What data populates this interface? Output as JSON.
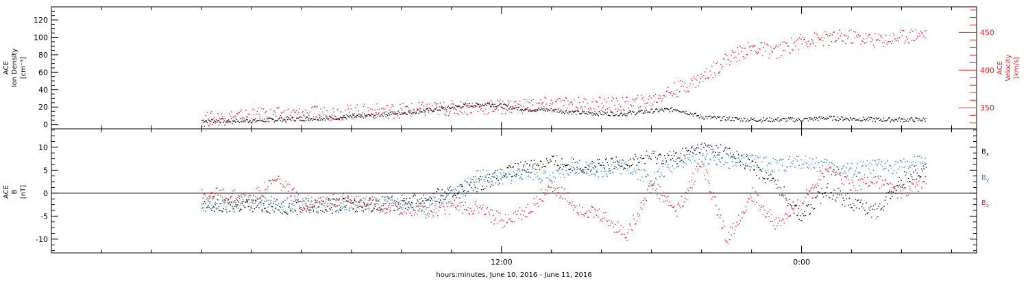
{
  "chart_data": [
    {
      "type": "scatter",
      "panel": "top",
      "title": "",
      "ylabel_lines": [
        "ACE",
        "Ion Density"
      ],
      "ylabel_unit": "[cm⁻³]",
      "ylim": [
        -5,
        135
      ],
      "yticks": [
        0,
        20,
        40,
        60,
        80,
        100,
        120
      ],
      "right_axis": {
        "ylabel_lines": [
          "ACE",
          "Velocity"
        ],
        "ylabel_unit": "[km/s]",
        "ylim": [
          322,
          484
        ],
        "yticks": [
          350,
          400,
          450
        ],
        "color": "#ee1c1c"
      },
      "series": [
        {
          "name": "",
          "color": "#000000",
          "axis": "left",
          "x": [
            0,
            2,
            4,
            6,
            8,
            9.5,
            10.5,
            11.5,
            12,
            13,
            14,
            15,
            16,
            17,
            18,
            19,
            20,
            21,
            22,
            23,
            24,
            25,
            26,
            27,
            28,
            29
          ],
          "y": [
            5,
            5,
            7,
            9,
            14,
            18,
            22,
            24,
            22,
            18,
            17,
            14,
            13,
            13,
            16,
            18,
            9,
            7,
            6,
            6,
            6,
            8,
            7,
            6,
            6,
            6
          ]
        },
        {
          "name": "",
          "color": "#ee1c1c",
          "axis": "right",
          "x": [
            0,
            2,
            4,
            6,
            8,
            10,
            12,
            14,
            16,
            17,
            18,
            18.5,
            19,
            20,
            21,
            22,
            23,
            24,
            25,
            26,
            27,
            28,
            29
          ],
          "y": [
            335,
            340,
            342,
            345,
            347,
            350,
            352,
            355,
            355,
            355,
            360,
            370,
            375,
            390,
            415,
            430,
            425,
            440,
            442,
            445,
            440,
            445,
            450
          ]
        }
      ]
    },
    {
      "type": "scatter",
      "panel": "bottom",
      "title": "",
      "ylabel_lines": [
        "ACE",
        "B"
      ],
      "ylabel_unit": "[nT]",
      "ylim": [
        -13,
        14
      ],
      "yticks": [
        -10,
        -5,
        0,
        5,
        10
      ],
      "zero_line": true,
      "legend_position": "right",
      "series": [
        {
          "name": "Bx",
          "label_main": "B",
          "label_sub": "x",
          "color": "#000000",
          "x": [
            0,
            2,
            4,
            6,
            8,
            9,
            10,
            11,
            12,
            13,
            14,
            15,
            16,
            17,
            18,
            19,
            20,
            21,
            22,
            23,
            24,
            25,
            26,
            27,
            28,
            29
          ],
          "y": [
            -3,
            -2.5,
            -3,
            -2.5,
            -2,
            -1,
            0,
            2,
            4,
            6,
            7,
            6,
            6,
            7,
            8,
            8,
            10,
            9,
            6,
            2,
            -5,
            1,
            -2,
            -4,
            3,
            6
          ]
        },
        {
          "name": "By",
          "label_main": "B",
          "label_sub": "y",
          "color": "#1f7fd6",
          "x": [
            0,
            2,
            4,
            6,
            8,
            9,
            10,
            11,
            12,
            13,
            14,
            15,
            16,
            17,
            18,
            19,
            20,
            21,
            22,
            23,
            24,
            25,
            26,
            27,
            28,
            29
          ],
          "y": [
            -2.5,
            -2,
            -2.5,
            -2,
            -2,
            -2.5,
            -1,
            4,
            3,
            5,
            3,
            6,
            5,
            6,
            3,
            7,
            8,
            7,
            7,
            6,
            7,
            6,
            5,
            6,
            6,
            7
          ]
        },
        {
          "name": "Bz",
          "label_main": "B",
          "label_sub": "z",
          "color": "#ee1c1c",
          "x": [
            0,
            2,
            3,
            4,
            5,
            6,
            8,
            9,
            10,
            11,
            12,
            13,
            14,
            15,
            16,
            17,
            18,
            19,
            20,
            21,
            22,
            23,
            24,
            25,
            26,
            27,
            28,
            29
          ],
          "y": [
            0,
            -1,
            3,
            -2,
            -1,
            -2,
            -3,
            -4,
            -3,
            -3,
            -6,
            -4,
            2,
            -3,
            -5,
            -9,
            2,
            -4,
            7,
            -10,
            0,
            -7,
            -2,
            6,
            2,
            3,
            0,
            3
          ]
        }
      ]
    }
  ],
  "x_axis": {
    "xlim": [
      -6,
      31
    ],
    "tick_labels": [
      {
        "x": 12,
        "label": "12:00"
      },
      {
        "x": 24,
        "label": "0:00"
      }
    ],
    "minor_ticks_every": 2,
    "xlabel": "hours:minutes, June 10, 2016 - June 11, 2016"
  },
  "colors": {
    "black": "#000000",
    "red": "#ee1c1c",
    "blue": "#1f7fd6"
  }
}
